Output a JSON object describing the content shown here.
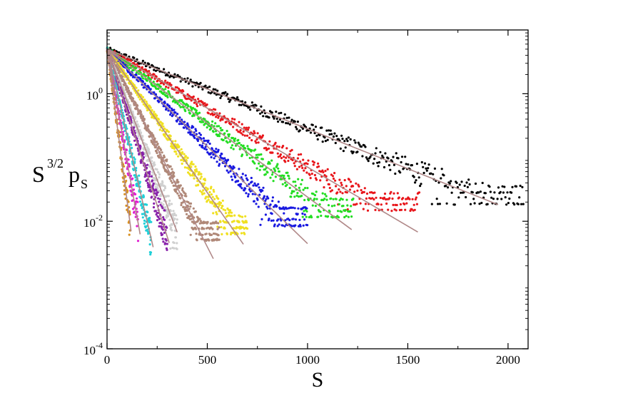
{
  "chart_data": {
    "type": "scatter",
    "title": "",
    "xlabel": "S",
    "ylabel_main": "S",
    "ylabel_sup": "3/2",
    "ylabel_p": "p",
    "ylabel_sub": "S",
    "xlim": [
      0,
      2100
    ],
    "ylim_log10": [
      -4,
      1
    ],
    "yscale": "log",
    "grid": false,
    "legend": "none",
    "x_ticks": [
      0,
      500,
      1000,
      1500,
      2000
    ],
    "x_tick_labels": [
      "0",
      "500",
      "1000",
      "1500",
      "2000"
    ],
    "y_ticks": [
      {
        "base": "10",
        "exp": "0",
        "log10": 0
      },
      {
        "base": "10",
        "exp": "-2",
        "log10": -2
      },
      {
        "base": "10",
        "exp": "-4",
        "log10": -4
      }
    ],
    "fit_line_color": "#b08888",
    "series": [
      {
        "color": "#000000",
        "y0": 5,
        "slope_log10_per_S": -0.00125,
        "x_end": 1950,
        "data_x_max": 2080,
        "tail_floor": 0.035
      },
      {
        "color": "#e8161b",
        "y0": 5,
        "slope_log10_per_S": -0.00185,
        "x_end": 1550,
        "data_x_max": 1560,
        "tail_floor": 0.028
      },
      {
        "color": "#22dd22",
        "y0": 5,
        "slope_log10_per_S": -0.00232,
        "x_end": 1220,
        "data_x_max": 1230,
        "tail_floor": 0.022
      },
      {
        "color": "#1818e0",
        "y0": 5,
        "slope_log10_per_S": -0.00305,
        "x_end": 1000,
        "data_x_max": 1000,
        "tail_floor": 0.016
      },
      {
        "color": "#f0e020",
        "y0": 5,
        "slope_log10_per_S": -0.0045,
        "x_end": 680,
        "data_x_max": 700,
        "tail_floor": 0.012
      },
      {
        "color": "#b08878",
        "y0": 5,
        "slope_log10_per_S": -0.0062,
        "x_end": 530,
        "data_x_max": 560,
        "tail_floor": 0.0095
      },
      {
        "color": "#d0d0d0",
        "y0": 5,
        "slope_log10_per_S": -0.0082,
        "x_end": 350,
        "data_x_max": 350,
        "tail_floor": 0.007
      },
      {
        "color": "#8822aa",
        "y0": 5,
        "slope_log10_per_S": -0.0098,
        "x_end": 310,
        "data_x_max": 300,
        "tail_floor": 0.0045
      },
      {
        "color": "#20d0d8",
        "y0": 5,
        "slope_log10_per_S": -0.0135,
        "x_end": 230,
        "data_x_max": 220,
        "tail_floor": 0.0028
      },
      {
        "color": "#e020d0",
        "y0": 5,
        "slope_log10_per_S": -0.0176,
        "x_end": 165,
        "data_x_max": 155,
        "tail_floor": 0.0015
      },
      {
        "color": "#d89020",
        "y0": 5,
        "slope_log10_per_S": -0.0238,
        "x_end": 120,
        "data_x_max": 115,
        "tail_floor": 0.0009
      }
    ]
  }
}
